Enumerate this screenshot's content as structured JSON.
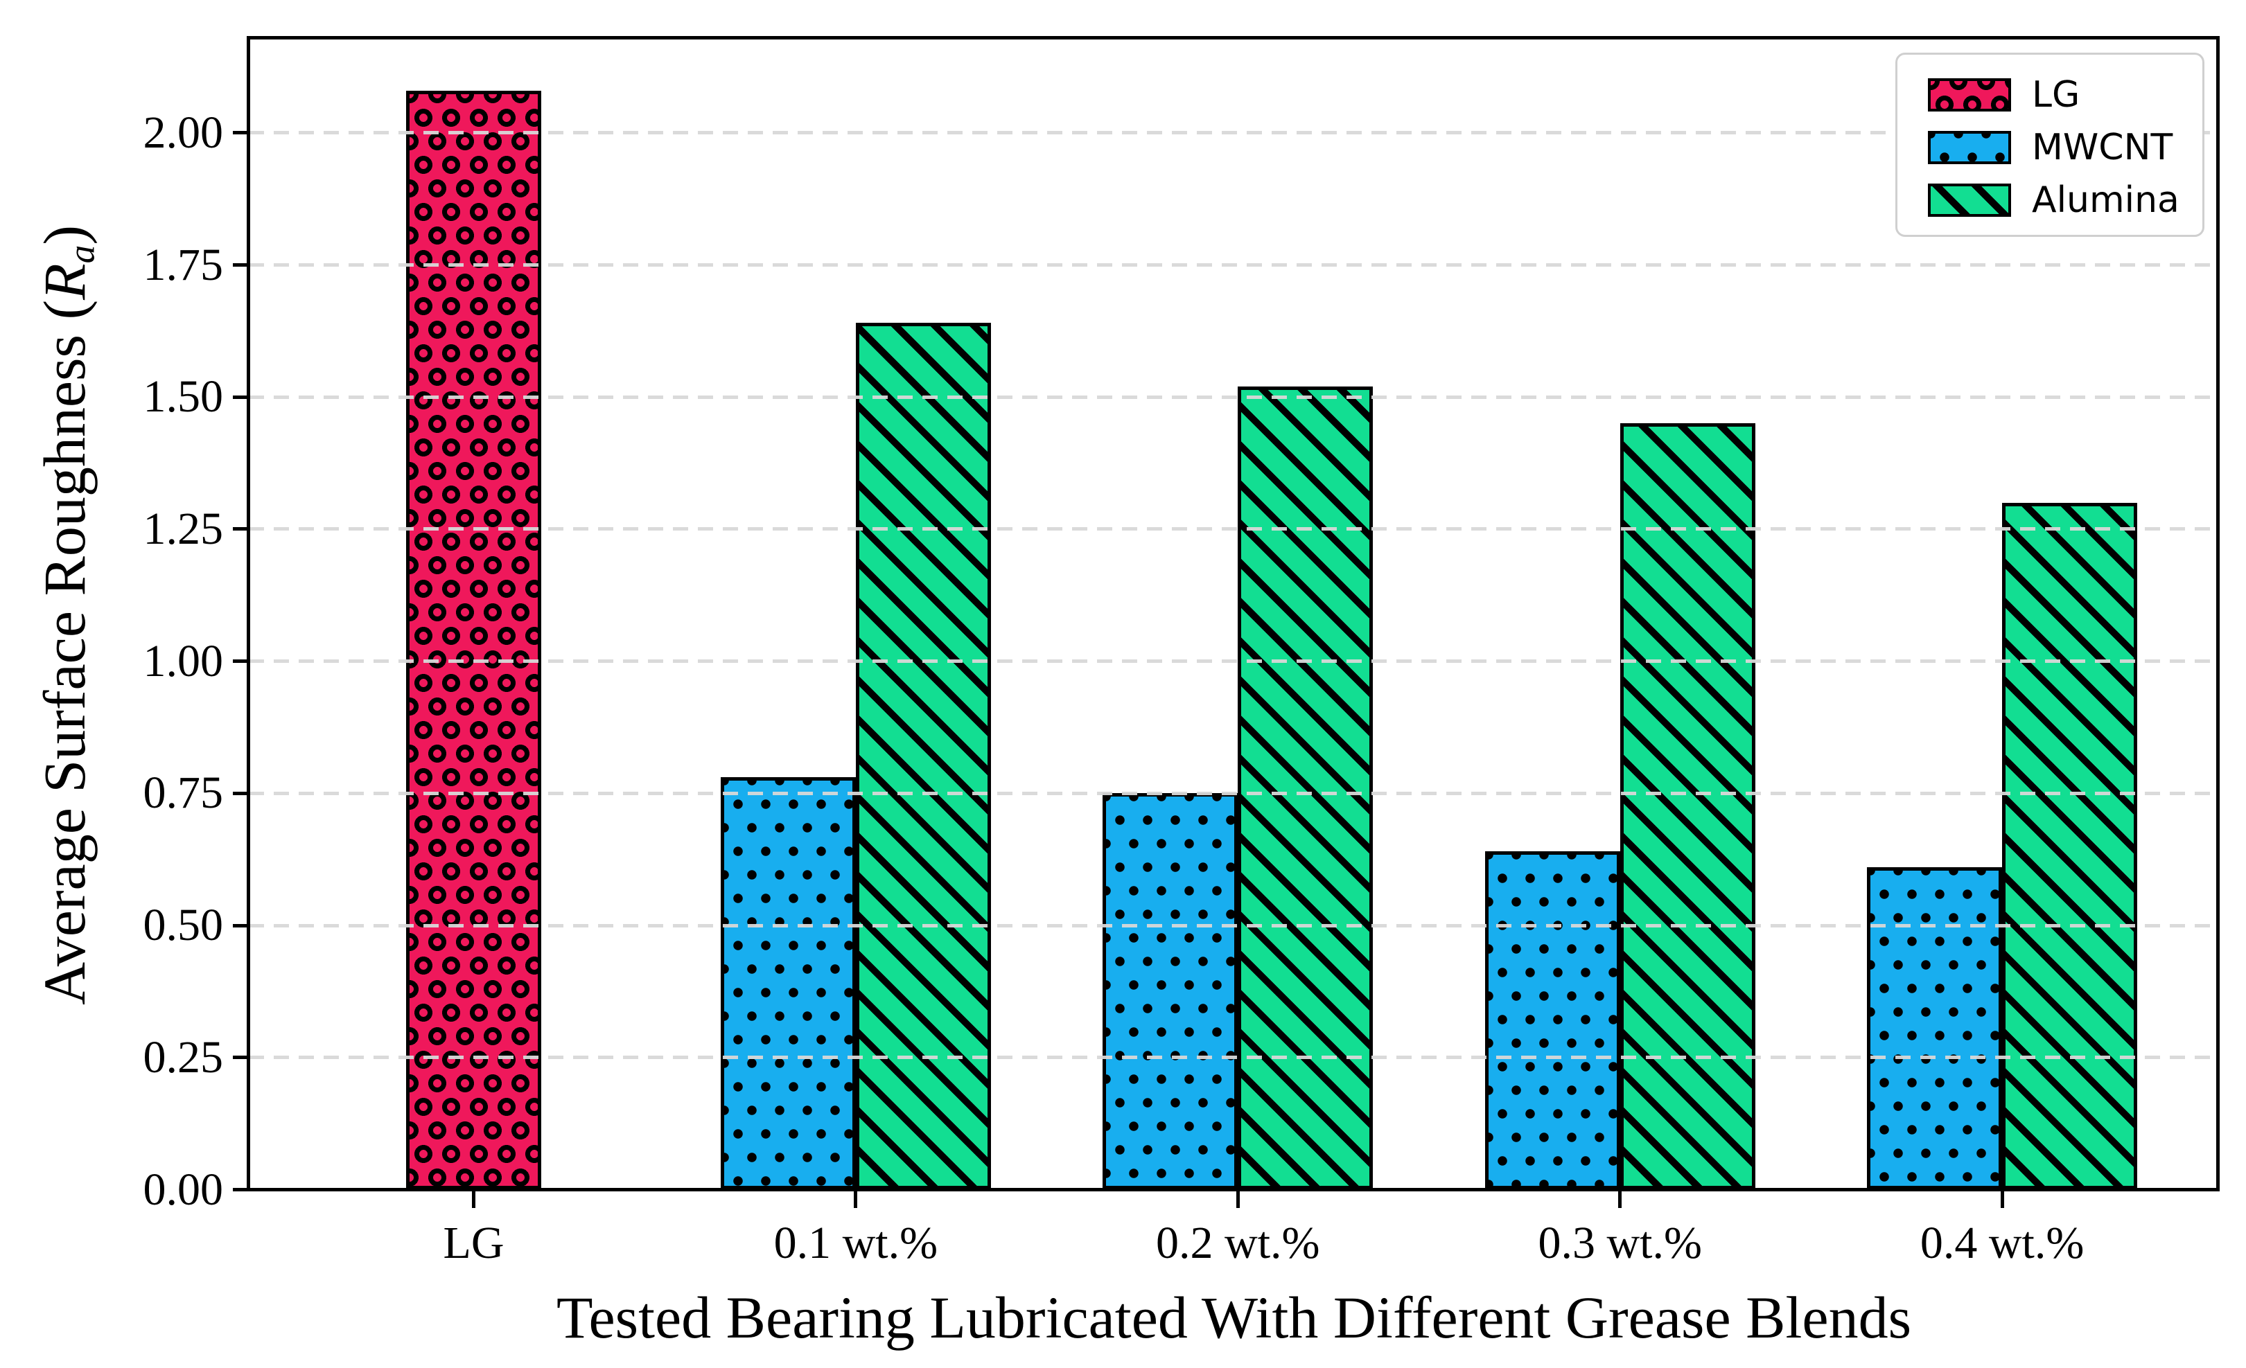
{
  "chart_data": {
    "type": "bar",
    "title": "",
    "xlabel": "Tested Bearing Lubricated With Different Grease Blends",
    "ylabel": "Average Surface Roughness (Ra)",
    "ylabel_parts": {
      "prefix": "Average Surface Roughness (",
      "symbol": "R",
      "subscript": "a",
      "suffix": ")"
    },
    "categories": [
      "LG",
      "0.1 wt.%",
      "0.2 wt.%",
      "0.3 wt.%",
      "0.4 wt.%"
    ],
    "series": [
      {
        "name": "LG",
        "color": "#EF185B",
        "hatch": "circles",
        "values": [
          2.08,
          null,
          null,
          null,
          null
        ]
      },
      {
        "name": "MWCNT",
        "color": "#18AEEF",
        "hatch": "dots",
        "values": [
          null,
          0.78,
          0.75,
          0.64,
          0.61
        ]
      },
      {
        "name": "Alumina",
        "color": "#12DE92",
        "hatch": "diagonal",
        "values": [
          null,
          1.64,
          1.52,
          1.45,
          1.3
        ]
      }
    ],
    "yticks": [
      {
        "value": 0.0,
        "label": "0.00"
      },
      {
        "value": 0.25,
        "label": "0.25"
      },
      {
        "value": 0.5,
        "label": "0.50"
      },
      {
        "value": 0.75,
        "label": "0.75"
      },
      {
        "value": 1.0,
        "label": "1.00"
      },
      {
        "value": 1.25,
        "label": "1.25"
      },
      {
        "value": 1.5,
        "label": "1.50"
      },
      {
        "value": 1.75,
        "label": "1.75"
      },
      {
        "value": 2.0,
        "label": "2.00"
      }
    ],
    "ylim": [
      0,
      2.18
    ],
    "grid": "horizontal-dashed-light-gray",
    "bar_edge_color": "#000000",
    "background": "#ffffff",
    "legend": {
      "position": "top-right"
    }
  }
}
